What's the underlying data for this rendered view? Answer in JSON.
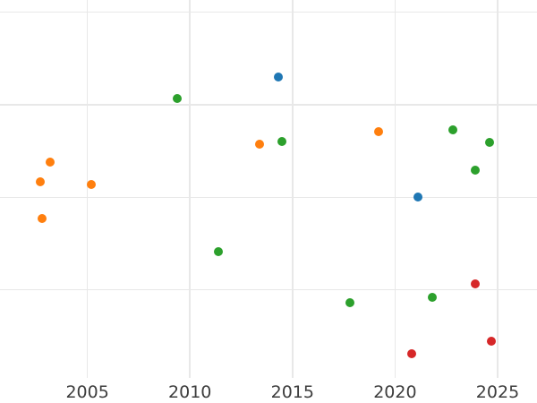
{
  "chart_data": {
    "type": "scatter",
    "title": "",
    "xlabel": "",
    "ylabel": "",
    "grid": true,
    "legend_position": "none",
    "x_ticks": [
      2005,
      2010,
      2015,
      2020,
      2025
    ],
    "x_tick_labels": [
      "2005",
      "2010",
      "2015",
      "2020",
      "2025"
    ],
    "xlim": [
      2000.74,
      2026.92
    ],
    "ylim": [
      0.05,
      4.13
    ],
    "y_axis_labeled": false,
    "y_gridline_values": [
      1,
      2,
      3,
      4
    ],
    "series": [
      {
        "name": "blue",
        "color": "#1f77b4",
        "points": [
          [
            2014.3,
            3.3
          ],
          [
            2021.1,
            2.0
          ]
        ]
      },
      {
        "name": "orange",
        "color": "#ff7f0e",
        "points": [
          [
            2002.7,
            2.17
          ],
          [
            2002.8,
            1.77
          ],
          [
            2003.2,
            2.38
          ],
          [
            2005.2,
            2.14
          ],
          [
            2013.4,
            2.57
          ],
          [
            2019.2,
            2.71
          ]
        ]
      },
      {
        "name": "green",
        "color": "#2ca02c",
        "points": [
          [
            2009.4,
            3.07
          ],
          [
            2011.4,
            1.41
          ],
          [
            2014.5,
            2.6
          ],
          [
            2017.8,
            0.86
          ],
          [
            2021.8,
            0.92
          ],
          [
            2022.8,
            2.73
          ],
          [
            2023.9,
            2.29
          ],
          [
            2024.6,
            2.59
          ]
        ]
      },
      {
        "name": "red",
        "color": "#d62728",
        "points": [
          [
            2020.8,
            0.31
          ],
          [
            2023.9,
            1.07
          ],
          [
            2024.7,
            0.45
          ]
        ]
      }
    ]
  },
  "style": {
    "background_color": "#ffffff",
    "grid_color": "#e8e8e8",
    "tick_label_color": "#3d3d3d"
  }
}
